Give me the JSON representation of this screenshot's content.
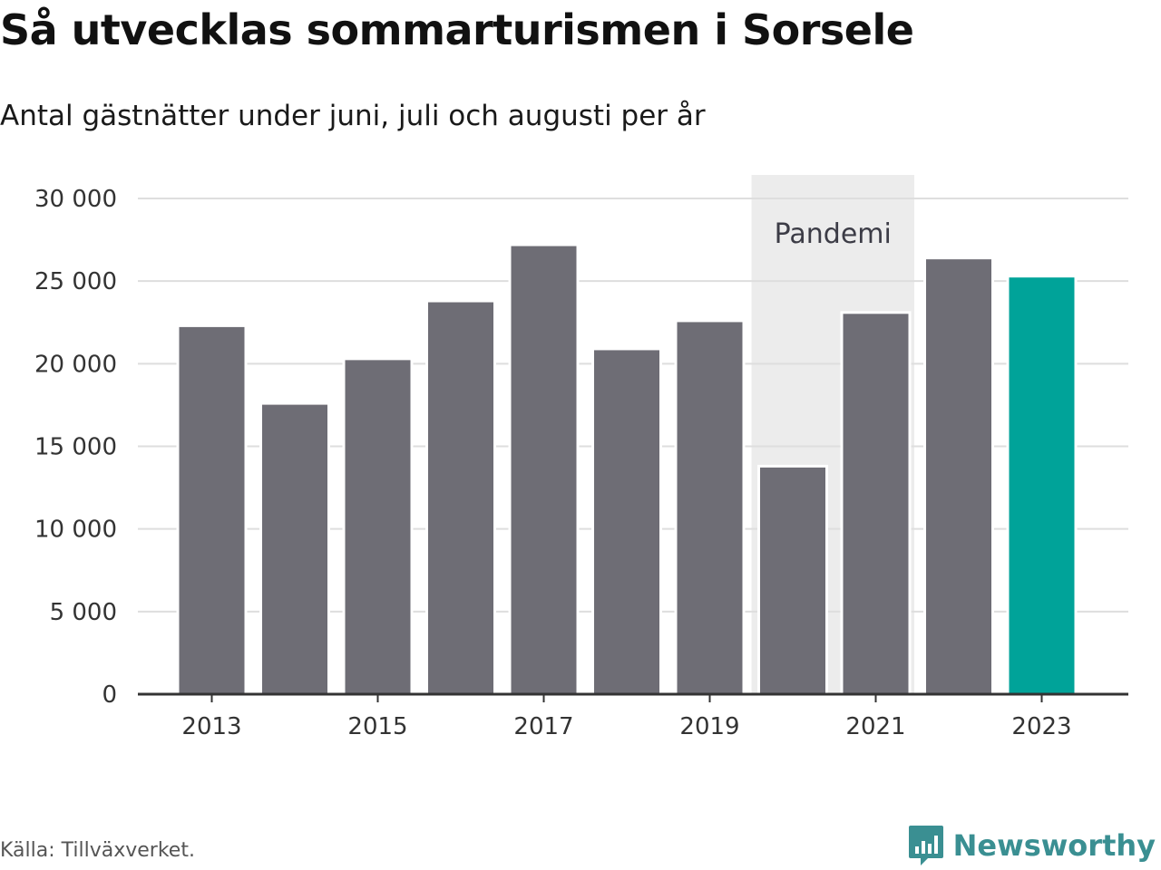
{
  "title": "Så utvecklas sommarturismen i Sorsele",
  "subtitle": "Antal gästnätter under juni, juli och augusti per år",
  "source": "Källa: Tillväxverket.",
  "brand": {
    "name": "Newsworthy",
    "icon": "newsworthy-bar-chart-icon",
    "color": "#3a8f92"
  },
  "chart_data": {
    "type": "bar",
    "title": "Så utvecklas sommarturismen i Sorsele",
    "subtitle": "Antal gästnätter under juni, juli och augusti per år",
    "xlabel": "",
    "ylabel": "",
    "categories": [
      "2013",
      "2014",
      "2015",
      "2016",
      "2017",
      "2018",
      "2019",
      "2020",
      "2021",
      "2022",
      "2023"
    ],
    "values": [
      22300,
      17600,
      20300,
      23800,
      27200,
      20900,
      22600,
      13800,
      23100,
      26400,
      25300
    ],
    "ylim": [
      0,
      30000
    ],
    "yticks": [
      0,
      5000,
      10000,
      15000,
      20000,
      25000,
      30000
    ],
    "ytick_labels": [
      "0",
      "5 000",
      "10 000",
      "15 000",
      "20 000",
      "25 000",
      "30 000"
    ],
    "xtick_labels": [
      "2013",
      "2015",
      "2017",
      "2019",
      "2021",
      "2023"
    ],
    "grid": true,
    "legend": "none",
    "colors": {
      "default": "#6e6d75",
      "highlight": "#00a399",
      "highlight_category": "2023",
      "gridline": "#dedede",
      "axis": "#333333",
      "annotation_band": "#ececec"
    },
    "annotations": [
      {
        "label": "Pandemi",
        "from": "2020",
        "to": "2021"
      }
    ]
  }
}
